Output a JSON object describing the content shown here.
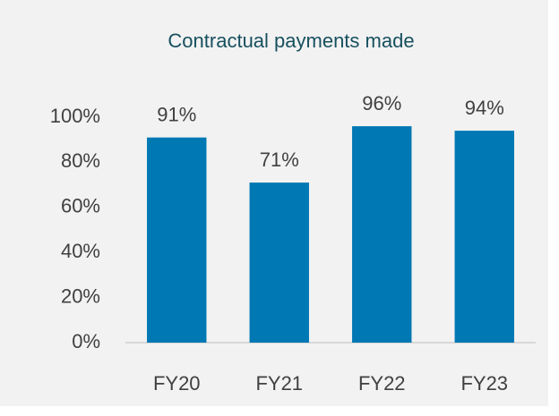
{
  "chart_data": {
    "type": "bar",
    "title": "Contractual payments made",
    "categories": [
      "FY20",
      "FY21",
      "FY22",
      "FY23"
    ],
    "values": [
      91,
      71,
      96,
      94
    ],
    "value_labels": [
      "91%",
      "71%",
      "96%",
      "94%"
    ],
    "color": "#0078b4",
    "ylim": [
      0,
      100
    ],
    "yticks": [
      {
        "value": 0,
        "label": "0%"
      },
      {
        "value": 20,
        "label": "20%"
      },
      {
        "value": 40,
        "label": "40%"
      },
      {
        "value": 60,
        "label": "60%"
      },
      {
        "value": 80,
        "label": "80%"
      },
      {
        "value": 100,
        "label": "100%"
      }
    ],
    "grid": false
  }
}
